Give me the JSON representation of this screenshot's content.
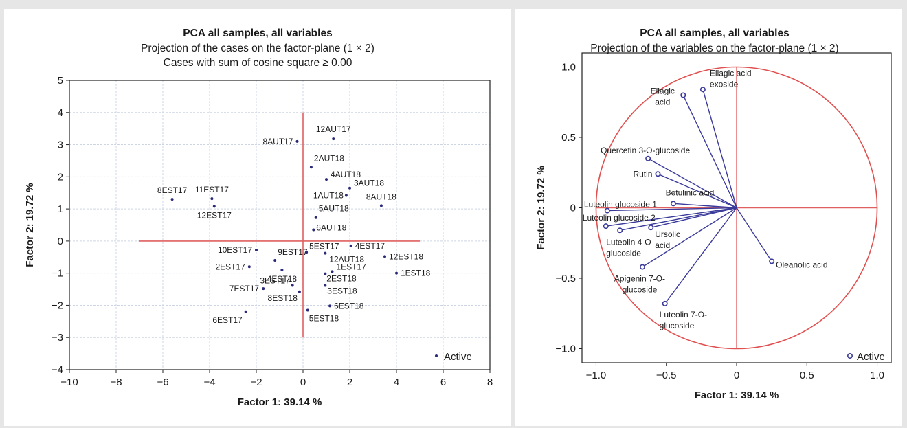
{
  "chart_data": [
    {
      "type": "scatter",
      "title": "PCA all samples, all variables",
      "subtitle": [
        "Projection of the cases on the factor-plane (1 × 2)",
        "Cases with sum of cosine square ≥ 0.00"
      ],
      "xlabel": "Factor 1: 39.14 %",
      "ylabel": "Factor 2: 19.72 %",
      "xlim": [
        -10,
        8
      ],
      "ylim": [
        -4,
        5
      ],
      "xticks": [
        -10,
        -8,
        -6,
        -4,
        -2,
        0,
        2,
        4,
        6,
        8
      ],
      "yticks": [
        -4,
        -3,
        -2,
        -1,
        0,
        1,
        2,
        3,
        4,
        5
      ],
      "xtick_labels": [
        "−10",
        "−8",
        "−6",
        "−4",
        "−2",
        "0",
        "2",
        "4",
        "6",
        "8"
      ],
      "ytick_labels": [
        "−4",
        "−3",
        "−2",
        "−1",
        "0",
        "1",
        "2",
        "3",
        "4",
        "5"
      ],
      "grid": true,
      "legend": {
        "label": "Active",
        "position": "bottom-right"
      },
      "points": [
        {
          "label": "8AUT17",
          "x": -0.25,
          "y": 3.1
        },
        {
          "label": "12AUT17",
          "x": 1.3,
          "y": 3.18
        },
        {
          "label": "2AUT18",
          "x": 0.35,
          "y": 2.3
        },
        {
          "label": "4AUT18",
          "x": 1.0,
          "y": 1.92
        },
        {
          "label": "3AUT18",
          "x": 2.0,
          "y": 1.65
        },
        {
          "label": "1AUT18",
          "x": 1.85,
          "y": 1.42
        },
        {
          "label": "8AUT18",
          "x": 3.35,
          "y": 1.1
        },
        {
          "label": "5AUT18",
          "x": 0.55,
          "y": 0.73
        },
        {
          "label": "6AUT18",
          "x": 0.45,
          "y": 0.35
        },
        {
          "label": "8EST17",
          "x": -5.6,
          "y": 1.3
        },
        {
          "label": "11EST17",
          "x": -3.9,
          "y": 1.32
        },
        {
          "label": "12EST17",
          "x": -3.8,
          "y": 1.08
        },
        {
          "label": "10EST17",
          "x": -2.0,
          "y": -0.28
        },
        {
          "label": "9EST17",
          "x": -1.2,
          "y": -0.6
        },
        {
          "label": "2EST17",
          "x": -2.3,
          "y": -0.8
        },
        {
          "label": "4EST18",
          "x": -0.9,
          "y": -0.9
        },
        {
          "label": "5EST17",
          "x": 0.15,
          "y": -0.35
        },
        {
          "label": "4EST17",
          "x": 2.05,
          "y": -0.15
        },
        {
          "label": "12AUT18",
          "x": 0.95,
          "y": -0.38
        },
        {
          "label": "12EST18",
          "x": 3.5,
          "y": -0.48
        },
        {
          "label": "1EST17",
          "x": 1.25,
          "y": -0.95
        },
        {
          "label": "1EST18",
          "x": 4.0,
          "y": -1.0
        },
        {
          "label": "2EST18",
          "x": 0.95,
          "y": -1.02
        },
        {
          "label": "3EST17",
          "x": -0.45,
          "y": -1.38
        },
        {
          "label": "7EST17",
          "x": -1.7,
          "y": -1.48
        },
        {
          "label": "8EST18",
          "x": -0.15,
          "y": -1.58
        },
        {
          "label": "3EST18",
          "x": 0.95,
          "y": -1.38
        },
        {
          "label": "6EST18",
          "x": 1.15,
          "y": -2.02
        },
        {
          "label": "6EST17",
          "x": -2.45,
          "y": -2.2
        },
        {
          "label": "5EST18",
          "x": 0.2,
          "y": -2.15
        }
      ]
    },
    {
      "type": "scatter",
      "title": "PCA all samples, all variables",
      "subtitle": [
        "Projection of the variables on the factor-plane (1 × 2)"
      ],
      "xlabel": "Factor 1: 39.14 %",
      "ylabel": "Factor 2: 19.72 %",
      "xlim": [
        -1.1,
        1.1
      ],
      "ylim": [
        -1.1,
        1.1
      ],
      "xticks": [
        -1.0,
        -0.5,
        0,
        0.5,
        1.0
      ],
      "yticks": [
        -1.0,
        -0.5,
        0,
        0.5,
        1.0
      ],
      "xtick_labels": [
        "−1.0",
        "−0.5",
        "0",
        "0.5",
        "1.0"
      ],
      "ytick_labels": [
        "−1.0",
        "−0.5",
        "0",
        "0.5",
        "1.0"
      ],
      "grid": false,
      "unit_circle": true,
      "legend": {
        "label": "Active",
        "position": "bottom-right"
      },
      "variables": [
        {
          "label": [
            "Ellagic acid",
            "exoside"
          ],
          "x": -0.24,
          "y": 0.84
        },
        {
          "label": [
            "Ellagic",
            "acid"
          ],
          "x": -0.38,
          "y": 0.8
        },
        {
          "label": [
            "Quercetin 3-O-glucoside"
          ],
          "x": -0.63,
          "y": 0.35
        },
        {
          "label": [
            "Rutin"
          ],
          "x": -0.56,
          "y": 0.24
        },
        {
          "label": [
            "Betulinic acid"
          ],
          "x": -0.45,
          "y": 0.03
        },
        {
          "label": [
            "Luteolin glucoside 1"
          ],
          "x": -0.92,
          "y": -0.02
        },
        {
          "label": [
            "Luteolin glucoside 2"
          ],
          "x": -0.93,
          "y": -0.13
        },
        {
          "label": [
            "Luteolin 4-O-",
            "glucoside"
          ],
          "x": -0.83,
          "y": -0.16
        },
        {
          "label": [
            "Ursolic",
            "acid"
          ],
          "x": -0.61,
          "y": -0.14
        },
        {
          "label": [
            "Apigenin 7-O-",
            "glucoside"
          ],
          "x": -0.67,
          "y": -0.42
        },
        {
          "label": [
            "Luteolin 7-O-",
            "glucoside"
          ],
          "x": -0.51,
          "y": -0.68
        },
        {
          "label": [
            "Oleanolic acid"
          ],
          "x": 0.25,
          "y": -0.38
        }
      ]
    }
  ]
}
